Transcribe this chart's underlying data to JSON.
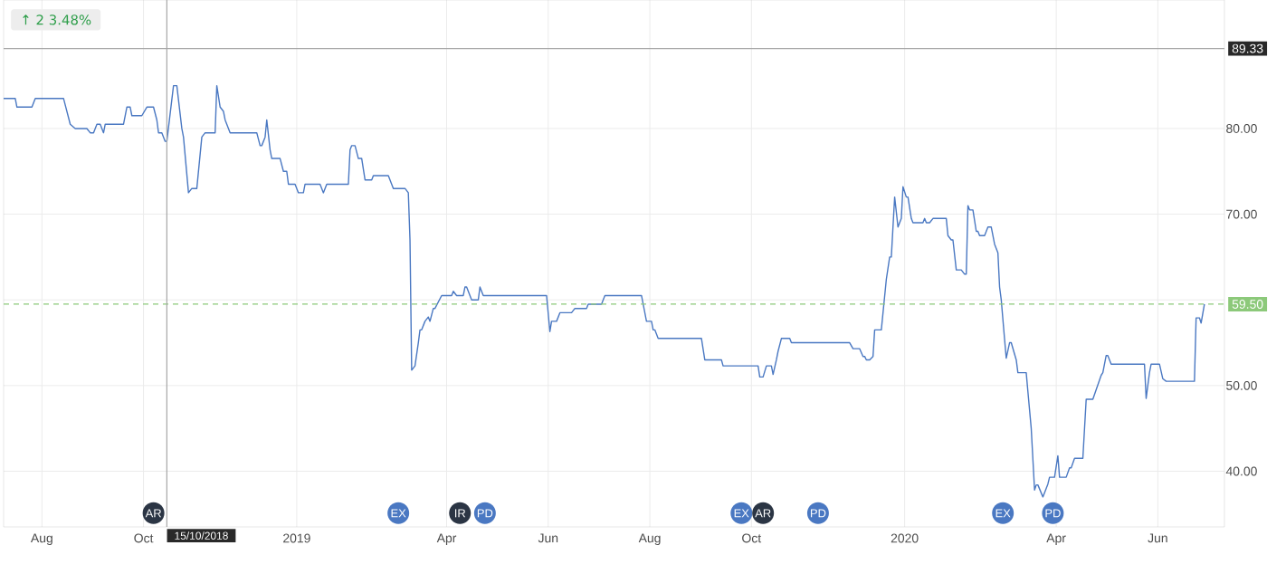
{
  "chart_data": {
    "type": "line",
    "title": "↑ 2 3.48%",
    "x": [
      "2018-07-09",
      "2018-07-16",
      "2018-07-17",
      "2018-07-26",
      "2018-07-28",
      "2018-08-14",
      "2018-08-18",
      "2018-08-21",
      "2018-08-28",
      "2018-08-30",
      "2018-09-01",
      "2018-09-03",
      "2018-09-05",
      "2018-09-07",
      "2018-09-08",
      "2018-09-19",
      "2018-09-21",
      "2018-09-23",
      "2018-09-24",
      "2018-09-30",
      "2018-10-03",
      "2018-10-07",
      "2018-10-09",
      "2018-10-10",
      "2018-10-12",
      "2018-10-14",
      "2018-10-15",
      "2018-10-19",
      "2018-10-21",
      "2018-10-24",
      "2018-10-25",
      "2018-10-28",
      "2018-10-30",
      "2018-11-02",
      "2018-11-05",
      "2018-11-07",
      "2018-11-13",
      "2018-11-14",
      "2018-11-16",
      "2018-11-18",
      "2018-11-19",
      "2018-11-22",
      "2018-12-08",
      "2018-12-10",
      "2018-12-11",
      "2018-12-13",
      "2018-12-14",
      "2018-12-16",
      "2018-12-17",
      "2018-12-22",
      "2018-12-24",
      "2018-12-26",
      "2018-12-27",
      "2018-12-31",
      "2019-01-02",
      "2019-01-05",
      "2019-01-06",
      "2019-01-15",
      "2019-01-17",
      "2019-01-19",
      "2019-02-01",
      "2019-02-02",
      "2019-02-03",
      "2019-02-05",
      "2019-02-07",
      "2019-02-09",
      "2019-02-11",
      "2019-02-15",
      "2019-02-16",
      "2019-02-25",
      "2019-02-27",
      "2019-02-28",
      "2019-03-07",
      "2019-03-09",
      "2019-03-10",
      "2019-03-11",
      "2019-03-13",
      "2019-03-15",
      "2019-03-16",
      "2019-03-17",
      "2019-03-19",
      "2019-03-21",
      "2019-03-22",
      "2019-03-24",
      "2019-03-25",
      "2019-03-29",
      "2019-04-04",
      "2019-04-05",
      "2019-04-07",
      "2019-04-11",
      "2019-04-12",
      "2019-04-13",
      "2019-04-16",
      "2019-04-20",
      "2019-04-21",
      "2019-04-23",
      "2019-05-31",
      "2019-06-02",
      "2019-06-03",
      "2019-06-06",
      "2019-06-08",
      "2019-06-15",
      "2019-06-17",
      "2019-06-24",
      "2019-06-25",
      "2019-07-03",
      "2019-07-05",
      "2019-07-27",
      "2019-07-28",
      "2019-07-30",
      "2019-08-02",
      "2019-08-03",
      "2019-08-04",
      "2019-08-06",
      "2019-09-01",
      "2019-09-03",
      "2019-09-13",
      "2019-09-14",
      "2019-10-05",
      "2019-10-06",
      "2019-10-08",
      "2019-10-10",
      "2019-10-13",
      "2019-10-14",
      "2019-10-16",
      "2019-10-17",
      "2019-10-19",
      "2019-10-24",
      "2019-10-25",
      "2019-11-29",
      "2019-12-01",
      "2019-12-05",
      "2019-12-07",
      "2019-12-08",
      "2019-12-09",
      "2019-12-11",
      "2019-12-13",
      "2019-12-14",
      "2019-12-18",
      "2019-12-21",
      "2019-12-23",
      "2019-12-24",
      "2019-12-26",
      "2019-12-28",
      "2019-12-30",
      "2019-12-31",
      "2020-01-02",
      "2020-01-03",
      "2020-01-05",
      "2020-01-06",
      "2020-01-12",
      "2020-01-13",
      "2020-01-14",
      "2020-01-16",
      "2020-01-18",
      "2020-01-26",
      "2020-01-27",
      "2020-01-29",
      "2020-01-30",
      "2020-02-01",
      "2020-02-04",
      "2020-02-06",
      "2020-02-07",
      "2020-02-08",
      "2020-02-09",
      "2020-02-11",
      "2020-02-13",
      "2020-02-14",
      "2020-02-15",
      "2020-02-18",
      "2020-02-20",
      "2020-02-22",
      "2020-02-24",
      "2020-02-26",
      "2020-02-27",
      "2020-02-28",
      "2020-03-01",
      "2020-03-02",
      "2020-03-04",
      "2020-03-05",
      "2020-03-08",
      "2020-03-09",
      "2020-03-14",
      "2020-03-15",
      "2020-03-17",
      "2020-03-19",
      "2020-03-20",
      "2020-03-21",
      "2020-03-24",
      "2020-03-26",
      "2020-03-27",
      "2020-03-28",
      "2020-03-31",
      "2020-04-02",
      "2020-04-03",
      "2020-04-07",
      "2020-04-09",
      "2020-04-10",
      "2020-04-12",
      "2020-04-17",
      "2020-04-19",
      "2020-04-23",
      "2020-04-28",
      "2020-04-29",
      "2020-05-01",
      "2020-05-02",
      "2020-05-04",
      "2020-05-24",
      "2020-05-25",
      "2020-05-27",
      "2020-05-28",
      "2020-06-02",
      "2020-06-04",
      "2020-06-06",
      "2020-06-23",
      "2020-06-24",
      "2020-06-26",
      "2020-06-27",
      "2020-06-29"
    ],
    "series": [
      {
        "color": "#4a78c2",
        "values": [
          83.5,
          83.5,
          82.5,
          82.5,
          83.5,
          83.5,
          80.5,
          80,
          80,
          79.5,
          79.5,
          80.5,
          80.5,
          79.5,
          80.5,
          80.5,
          82.5,
          82.5,
          81.5,
          81.5,
          82.5,
          82.5,
          81,
          79.5,
          79.5,
          78.5,
          78.5,
          85,
          85,
          80,
          79,
          72.5,
          73,
          73,
          79,
          79.5,
          79.5,
          85,
          82.5,
          82,
          81,
          79.5,
          79.5,
          78,
          78,
          79,
          81,
          77.5,
          76.5,
          76.5,
          75,
          75,
          73.5,
          73.5,
          72.5,
          72.5,
          73.5,
          73.5,
          72.5,
          73.5,
          73.5,
          77.5,
          78,
          78,
          76.5,
          76.5,
          74,
          74,
          74.5,
          74.5,
          73.5,
          73,
          73,
          72.5,
          67,
          51.8,
          52.3,
          55,
          56.5,
          56.5,
          57.5,
          58,
          57.5,
          59,
          59,
          60.5,
          60.5,
          61,
          60.5,
          60.5,
          61.5,
          61.5,
          60,
          60,
          61.5,
          60.5,
          60.5,
          56.3,
          57.5,
          57.5,
          58.5,
          58.5,
          59,
          59,
          59.5,
          59.5,
          60.5,
          60.5,
          59.5,
          57.5,
          57.5,
          56.5,
          56.5,
          55.5,
          55.5,
          53,
          53,
          52.3,
          52.3,
          51,
          51,
          52.3,
          52.3,
          51.3,
          53,
          54,
          55.5,
          55.5,
          55,
          55,
          54.3,
          54.3,
          53.4,
          53.4,
          53,
          53,
          53.4,
          56.5,
          56.5,
          62.4,
          65,
          65,
          72,
          68.5,
          69.5,
          73.2,
          72,
          72,
          69.5,
          69,
          69,
          69.5,
          69,
          69,
          69.5,
          69.5,
          67.5,
          67,
          67,
          63.5,
          63.5,
          63,
          63,
          71,
          70.5,
          70.5,
          68,
          68,
          67.5,
          67.5,
          68.5,
          68.5,
          66.5,
          65.5,
          61.5,
          60,
          55.4,
          53.2,
          55,
          55,
          53,
          51.5,
          51.5,
          49.3,
          45,
          37.8,
          38.4,
          38.4,
          37,
          38,
          38.5,
          39.3,
          39.3,
          41.8,
          39.3,
          39.3,
          40.4,
          40.4,
          41.5,
          41.5,
          48.4,
          48.4,
          51.2,
          51.5,
          53.5,
          53.5,
          52.5,
          52.5,
          48.5,
          51.5,
          52.5,
          52.5,
          50.8,
          50.5,
          50.5,
          57.9,
          57.9,
          57.3,
          59.5
        ]
      }
    ],
    "xlim": [
      "2018-07-09",
      "2020-07-11"
    ],
    "xticks": [
      {
        "value": "2018-08-01",
        "label": "Aug"
      },
      {
        "value": "2018-10-01",
        "label": "Oct"
      },
      {
        "value": "2019-01-01",
        "label": "2019"
      },
      {
        "value": "2019-04-01",
        "label": "Apr"
      },
      {
        "value": "2019-06-01",
        "label": "Jun"
      },
      {
        "value": "2019-08-01",
        "label": "Aug"
      },
      {
        "value": "2019-10-01",
        "label": "Oct"
      },
      {
        "value": "2020-01-01",
        "label": "2020"
      },
      {
        "value": "2020-04-01",
        "label": "Apr"
      },
      {
        "value": "2020-06-01",
        "label": "Jun"
      }
    ],
    "ylim": [
      33.5,
      95
    ],
    "yticks": [
      {
        "value": 40,
        "label": "40.00"
      },
      {
        "value": 50,
        "label": "50.00"
      },
      {
        "value": 60,
        "label": null
      },
      {
        "value": 70,
        "label": "70.00"
      },
      {
        "value": 80,
        "label": "80.00"
      }
    ],
    "grid": true,
    "ref_lines": [
      {
        "axis": "y",
        "value": 89.33,
        "label": "89.33",
        "color": "#a6a6a6"
      },
      {
        "axis": "y",
        "value": 59.5,
        "label": "59.50",
        "color": "#8cc97a",
        "line_style": "dashed"
      },
      {
        "axis": "x",
        "value": "2018-10-15",
        "label": "15/10/2018",
        "color": "#a6a6a6"
      }
    ],
    "annotations": [
      {
        "text": "AR",
        "x": "2018-10-07",
        "y": 35.1
      },
      {
        "text": "EX",
        "x": "2019-03-03",
        "y": 35.1
      },
      {
        "text": "IR",
        "x": "2019-04-09",
        "y": 35.1
      },
      {
        "text": "PD",
        "x": "2019-04-24",
        "y": 35.1
      },
      {
        "text": "EX",
        "x": "2019-09-25",
        "y": 35.1
      },
      {
        "text": "AR",
        "x": "2019-10-08",
        "y": 35.1
      },
      {
        "text": "PD",
        "x": "2019-11-10",
        "y": 35.1
      },
      {
        "text": "EX",
        "x": "2020-02-29",
        "y": 35.1
      },
      {
        "text": "PD",
        "x": "2020-03-30",
        "y": 35.1
      }
    ]
  }
}
